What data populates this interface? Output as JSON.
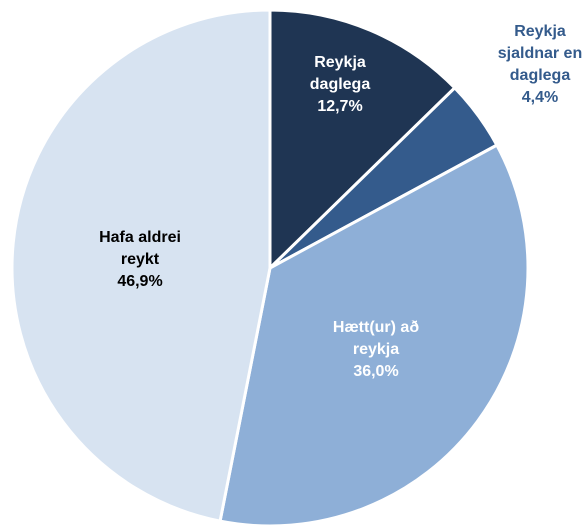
{
  "chart_data": {
    "type": "pie",
    "categories": [
      "Reykja daglega",
      "Reykja sjaldnar en daglega",
      "Hætt(ur) að reykja",
      "Hafa aldrei reykt"
    ],
    "values": [
      12.7,
      4.4,
      36.0,
      46.9
    ],
    "value_labels": [
      "12,7%",
      "4,4%",
      "36,0%",
      "46,9%"
    ],
    "colors": [
      "#1f3553",
      "#345b8c",
      "#8eafd7",
      "#d7e3f1"
    ]
  }
}
